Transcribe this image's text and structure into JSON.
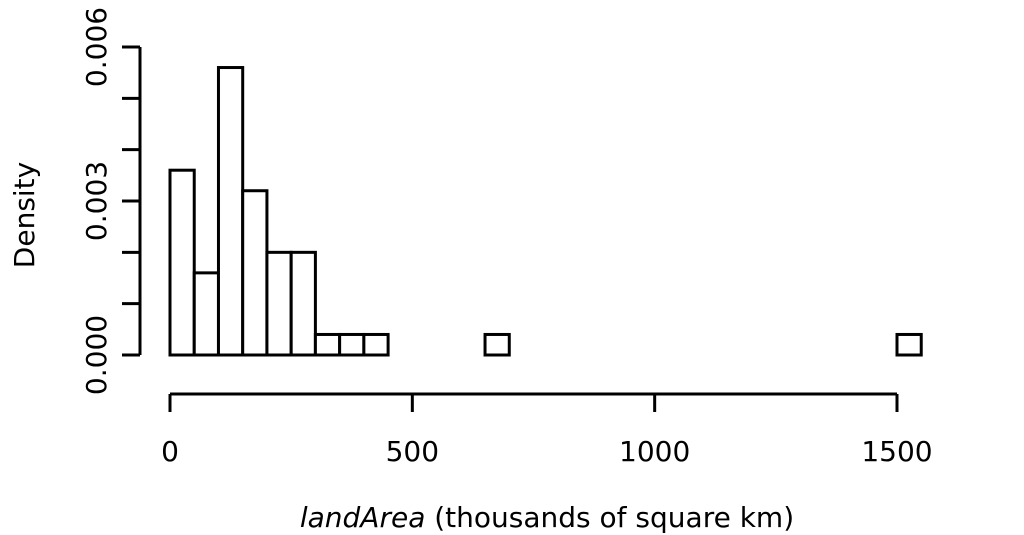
{
  "chart_data": {
    "type": "histogram",
    "title": "",
    "xlabel_var": "landArea",
    "xlabel_rest": " (thousands of square km)",
    "ylabel": "Density",
    "bin_width": 50,
    "bins": [
      {
        "start": 0,
        "end": 50,
        "density": 0.0036
      },
      {
        "start": 50,
        "end": 100,
        "density": 0.0016
      },
      {
        "start": 100,
        "end": 150,
        "density": 0.0056
      },
      {
        "start": 150,
        "end": 200,
        "density": 0.0032
      },
      {
        "start": 200,
        "end": 250,
        "density": 0.002
      },
      {
        "start": 250,
        "end": 300,
        "density": 0.002
      },
      {
        "start": 300,
        "end": 350,
        "density": 0.0004
      },
      {
        "start": 350,
        "end": 400,
        "density": 0.0004
      },
      {
        "start": 400,
        "end": 450,
        "density": 0.0004
      },
      {
        "start": 450,
        "end": 500,
        "density": 0.0
      },
      {
        "start": 500,
        "end": 550,
        "density": 0.0
      },
      {
        "start": 550,
        "end": 600,
        "density": 0.0
      },
      {
        "start": 600,
        "end": 650,
        "density": 0.0
      },
      {
        "start": 650,
        "end": 700,
        "density": 0.0004
      },
      {
        "start": 700,
        "end": 750,
        "density": 0.0
      },
      {
        "start": 750,
        "end": 800,
        "density": 0.0
      },
      {
        "start": 800,
        "end": 850,
        "density": 0.0
      },
      {
        "start": 850,
        "end": 900,
        "density": 0.0
      },
      {
        "start": 900,
        "end": 950,
        "density": 0.0
      },
      {
        "start": 950,
        "end": 1000,
        "density": 0.0
      },
      {
        "start": 1000,
        "end": 1050,
        "density": 0.0
      },
      {
        "start": 1050,
        "end": 1100,
        "density": 0.0
      },
      {
        "start": 1100,
        "end": 1150,
        "density": 0.0
      },
      {
        "start": 1150,
        "end": 1200,
        "density": 0.0
      },
      {
        "start": 1200,
        "end": 1250,
        "density": 0.0
      },
      {
        "start": 1250,
        "end": 1300,
        "density": 0.0
      },
      {
        "start": 1300,
        "end": 1350,
        "density": 0.0
      },
      {
        "start": 1350,
        "end": 1400,
        "density": 0.0
      },
      {
        "start": 1400,
        "end": 1450,
        "density": 0.0
      },
      {
        "start": 1450,
        "end": 1500,
        "density": 0.0
      },
      {
        "start": 1500,
        "end": 1550,
        "density": 0.0004
      }
    ],
    "xlim": [
      0,
      1550
    ],
    "ylim": [
      0,
      0.006
    ],
    "x_ticks": [
      0,
      500,
      1000,
      1500
    ],
    "x_tick_labels": [
      "0",
      "500",
      "1000",
      "1500"
    ],
    "y_ticks": [
      0,
      0.001,
      0.002,
      0.003,
      0.004,
      0.005,
      0.006
    ],
    "y_tick_labels": [
      "0.000",
      "0.003",
      "0.006"
    ],
    "y_labeled_ticks": [
      0,
      0.003,
      0.006
    ],
    "grid": false,
    "legend": "none"
  }
}
